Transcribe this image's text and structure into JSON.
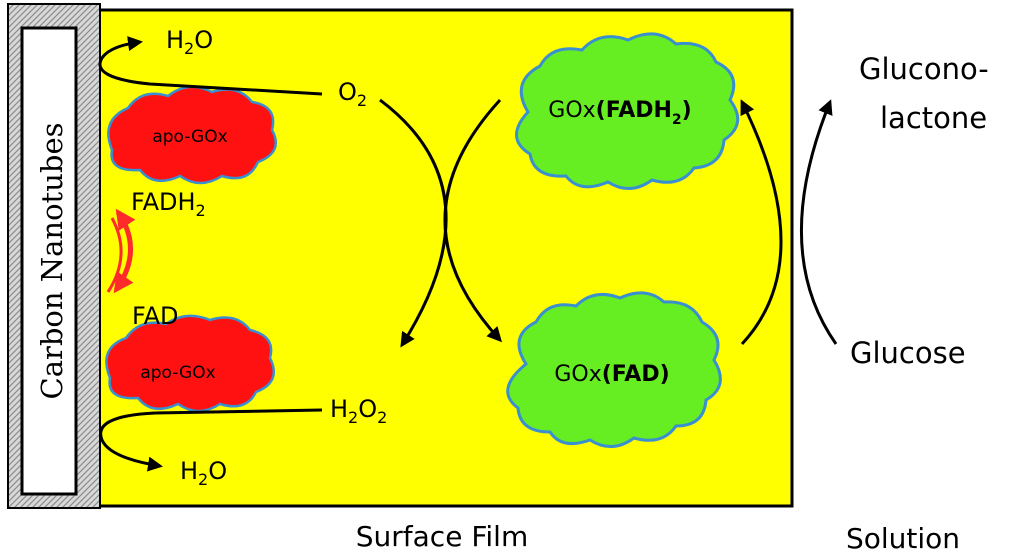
{
  "colors": {
    "film": "#ffff00",
    "enzyme_active": "#66ee22",
    "enzyme_apo": "#ff1111",
    "cloud_outline": "#3a8fd0",
    "arrow": "#000000",
    "transfer_arrow": "#ff2a2a",
    "electrode_fill": "#ffffff",
    "hatch": "#9a9a9a"
  },
  "electrode": {
    "label": "Carbon Nanotubes"
  },
  "film_species": {
    "o2": {
      "base": "O",
      "sub": "2"
    },
    "h2o_top": {
      "base": "H",
      "sub": "2",
      "tail": "O"
    },
    "h2o2": {
      "b1": "H",
      "s1": "2",
      "b2": "O",
      "s2": "2"
    },
    "h2o_bottom": {
      "base": "H",
      "sub": "2",
      "tail": "O"
    },
    "fadh2": {
      "base": "FADH",
      "sub": "2"
    },
    "fad": "FAD"
  },
  "enzymes": {
    "apo_top": "apo-GOx",
    "apo_bottom": "apo-GOx",
    "gox_fadh2": {
      "prefix": "GOx",
      "open": "(FADH",
      "sub": "2",
      "close": ")"
    },
    "gox_fad": {
      "prefix": "GOx",
      "rest": "(FAD)"
    }
  },
  "solution_species": {
    "product_line1": "Glucono-",
    "product_line2": "lactone",
    "substrate": "Glucose"
  },
  "regions": {
    "surface_film": "Surface Film",
    "solution": "Solution"
  }
}
